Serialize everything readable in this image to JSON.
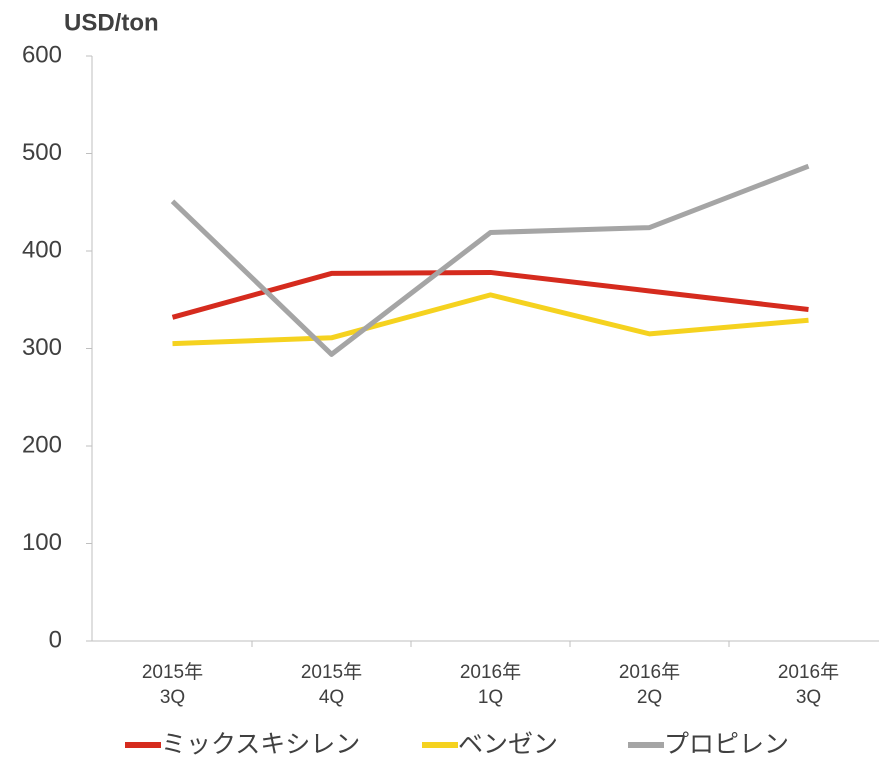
{
  "chart_data": {
    "type": "line",
    "y_axis_label": "USD/ton",
    "categories": [
      [
        "2015年",
        "3Q"
      ],
      [
        "2015年",
        "4Q"
      ],
      [
        "2016年",
        "1Q"
      ],
      [
        "2016年",
        "2Q"
      ],
      [
        "2016年",
        "3Q"
      ]
    ],
    "series": [
      {
        "name": "ミックスキシレン",
        "color": "#d52b1e",
        "values": [
          332,
          377,
          378,
          359,
          340
        ]
      },
      {
        "name": "ベンゼン",
        "color": "#f5d21f",
        "values": [
          305,
          311,
          355,
          315,
          329
        ]
      },
      {
        "name": "プロピレン",
        "color": "#a5a5a5",
        "values": [
          451,
          294,
          419,
          424,
          487
        ]
      }
    ],
    "ylim": [
      0,
      600
    ],
    "yticks": [
      0,
      100,
      200,
      300,
      400,
      500,
      600
    ],
    "grid": false
  }
}
